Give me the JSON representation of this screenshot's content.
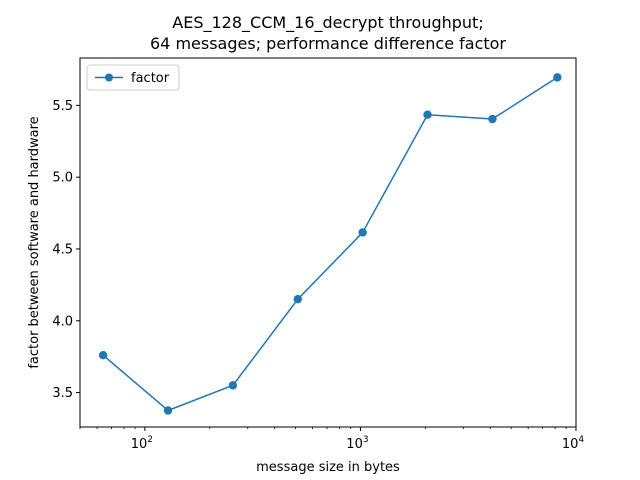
{
  "chart_data": {
    "type": "line",
    "title_lines": [
      "AES_128_CCM_16_decrypt throughput;",
      "64 messages; performance difference factor"
    ],
    "xlabel": "message size in bytes",
    "ylabel": "factor between software and hardware",
    "x_scale": "log",
    "xlim": [
      50,
      10000
    ],
    "ylim": [
      3.26,
      5.83
    ],
    "x_ticks": [
      {
        "value": 100,
        "base": "10",
        "exp": "2"
      },
      {
        "value": 1000,
        "base": "10",
        "exp": "3"
      },
      {
        "value": 10000,
        "base": "10",
        "exp": "4"
      }
    ],
    "y_ticks": [
      {
        "value": 3.5,
        "label": "3.5"
      },
      {
        "value": 4.0,
        "label": "4.0"
      },
      {
        "value": 4.5,
        "label": "4.5"
      },
      {
        "value": 5.0,
        "label": "5.0"
      },
      {
        "value": 5.5,
        "label": "5.5"
      }
    ],
    "grid": false,
    "legend_position": "top-left",
    "series": [
      {
        "name": "factor",
        "color": "#1f77b4",
        "marker": "circle",
        "x": [
          64,
          128,
          256,
          512,
          1024,
          2048,
          4096,
          8192
        ],
        "y": [
          3.76,
          3.375,
          3.55,
          4.15,
          4.615,
          5.435,
          5.405,
          5.695
        ]
      }
    ]
  }
}
